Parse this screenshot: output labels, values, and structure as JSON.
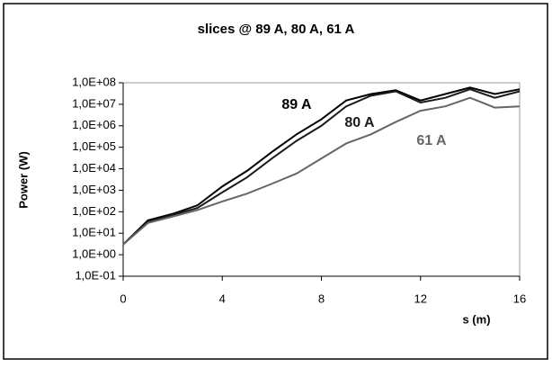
{
  "chart_data": {
    "type": "line",
    "title": "slices @ 89 A, 80 A, 61 A",
    "x_label": "s (m)",
    "y_label": "Power (W)",
    "log_y": true,
    "x": [
      0,
      1,
      2,
      3,
      4,
      5,
      6,
      7,
      8,
      9,
      10,
      11,
      12,
      13,
      14,
      15,
      16
    ],
    "series": [
      {
        "name": "89 A",
        "color": "#000000",
        "values": [
          3,
          40,
          80,
          200,
          1500,
          8000,
          60000,
          400000,
          2000000,
          15000000,
          30000000,
          45000000,
          15000000,
          30000000,
          60000000,
          30000000,
          50000000
        ]
      },
      {
        "name": "80 A",
        "color": "#1a1a1a",
        "values": [
          3,
          35,
          70,
          150,
          800,
          4000,
          30000,
          200000,
          1000000,
          8000000,
          25000000,
          40000000,
          12000000,
          20000000,
          50000000,
          20000000,
          40000000
        ]
      },
      {
        "name": "61 A",
        "color": "#666666",
        "values": [
          3,
          30,
          60,
          120,
          300,
          700,
          2000,
          6000,
          30000,
          150000,
          400000,
          1500000,
          5000000,
          8000000,
          20000000,
          7000000,
          8000000
        ]
      }
    ],
    "xlim": [
      0,
      16
    ],
    "xticks": [
      0,
      4,
      8,
      12,
      16
    ],
    "ylim": [
      0.1,
      100000000
    ],
    "yticks": [
      {
        "value": 100000000,
        "label": "1,0E+08"
      },
      {
        "value": 10000000,
        "label": "1,0E+07"
      },
      {
        "value": 1000000,
        "label": "1,0E+06"
      },
      {
        "value": 100000,
        "label": "1,0E+05"
      },
      {
        "value": 10000,
        "label": "1,0E+04"
      },
      {
        "value": 1000,
        "label": "1,0E+03"
      },
      {
        "value": 100,
        "label": "1,0E+02"
      },
      {
        "value": 10,
        "label": "1,0E+01"
      },
      {
        "value": 1,
        "label": "1,0E+00"
      },
      {
        "value": 0.1,
        "label": "1,0E-01"
      }
    ]
  }
}
